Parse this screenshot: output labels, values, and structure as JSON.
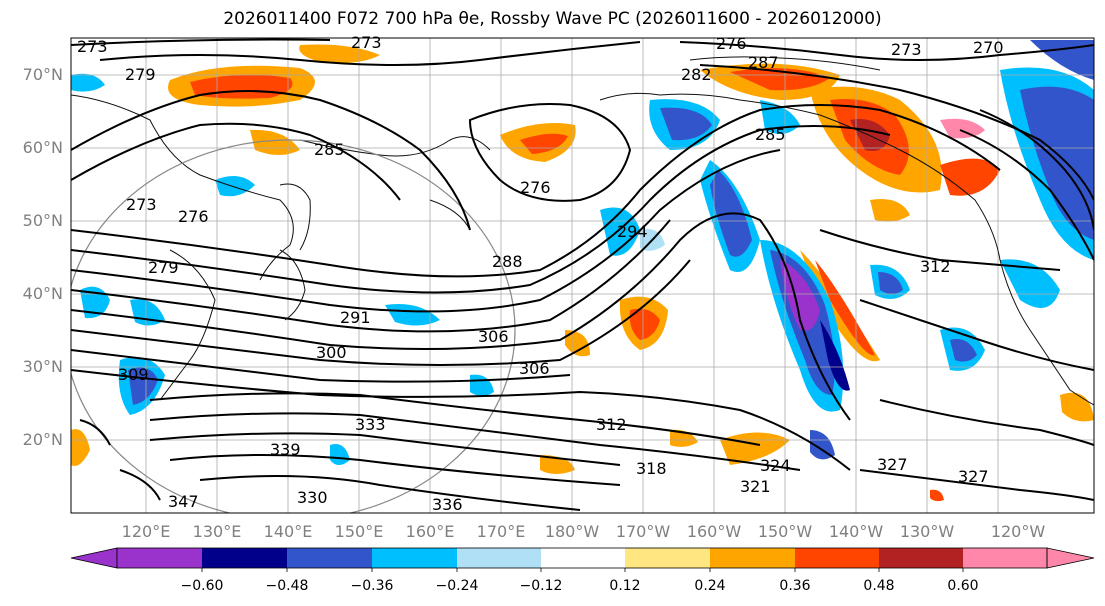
{
  "title": "2026011400 F072 700 hPa θe, Rossby Wave PC (2026011600 - 2026012000)",
  "lat_labels": [
    "70°N",
    "60°N",
    "50°N",
    "40°N",
    "30°N",
    "20°N"
  ],
  "lon_labels": [
    "120°E",
    "130°E",
    "140°E",
    "150°E",
    "160°E",
    "170°E",
    "180°W",
    "170°W",
    "160°W",
    "150°W",
    "140°W",
    "130°W",
    "120°W"
  ],
  "contour_labels": [
    "273",
    "279",
    "273",
    "276",
    "273",
    "270",
    "282",
    "287",
    "285",
    "285",
    "276",
    "276",
    "273",
    "279",
    "288",
    "291",
    "300",
    "306",
    "306",
    "312",
    "318",
    "324",
    "321",
    "327",
    "327",
    "330",
    "336",
    "333",
    "339",
    "347",
    "312",
    "294",
    "309"
  ],
  "colorbar": {
    "ticks": [
      "−0.60",
      "−0.48",
      "−0.36",
      "−0.24",
      "−0.12",
      "0.12",
      "0.24",
      "0.36",
      "0.48",
      "0.60"
    ],
    "colors": [
      "#9933cc",
      "#00008b",
      "#3355cc",
      "#00bfff",
      "#b0e0f5",
      "#ffffff",
      "#ffe680",
      "#ffa500",
      "#ff4500",
      "#b22222",
      "#ff88aa"
    ]
  }
}
